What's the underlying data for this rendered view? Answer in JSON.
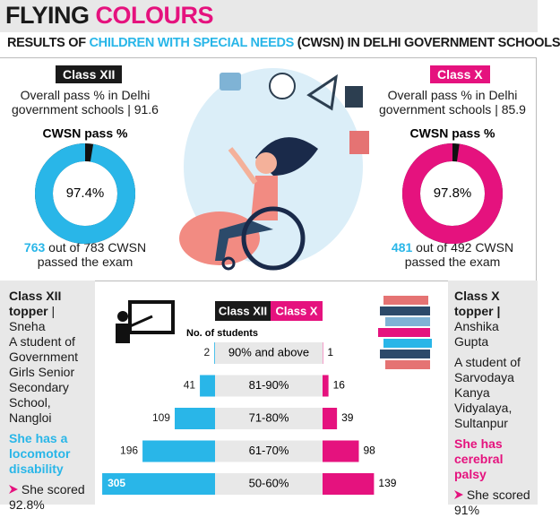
{
  "header": {
    "title_parts": [
      "FLYING",
      "COLOURS"
    ],
    "subtitle_parts": [
      "RESULTS OF",
      "CHILDREN WITH SPECIAL NEEDS",
      "(CWSN) IN DELHI GOVERNMENT SCHOOLS"
    ]
  },
  "panels": [
    {
      "badge": "Class XII",
      "overall": "Overall pass % in Delhi government schools | 91.6",
      "count": "763",
      "count_text": "out of 783 CWSN passed the exam"
    },
    {
      "badge": "Class X",
      "overall": "Overall pass % in Delhi government schools | 85.9",
      "count": "481",
      "count_text": "out of 492 CWSN passed the exam"
    }
  ],
  "chart_data": [
    {
      "type": "pie",
      "title": "CWSN pass %",
      "values": [
        97.4
      ],
      "value_labels": [
        "97.4%"
      ],
      "color": "#29b6e8",
      "rest_color": "#111111"
    },
    {
      "type": "pie",
      "title": "CWSN pass %",
      "values": [
        97.8
      ],
      "value_labels": [
        "97.8%"
      ],
      "color": "#e5127e",
      "rest_color": "#111111"
    },
    {
      "type": "bar",
      "axis_label": "No. of students",
      "categories": [
        "90% and above",
        "81-90%",
        "71-80%",
        "61-70%",
        "50-60%"
      ],
      "series": [
        {
          "name": "Class XII",
          "color": "#29b6e8",
          "values": [
            2,
            41,
            109,
            196,
            305
          ]
        },
        {
          "name": "Class X",
          "color": "#e5127e",
          "values": [
            1,
            16,
            39,
            98,
            139
          ]
        }
      ],
      "xlim": [
        0,
        310
      ]
    }
  ],
  "toppers": [
    {
      "heading": "Class XII topper",
      "name": "| Sneha",
      "school": "A student of Government Girls Senior Secondary School, Nangloi",
      "condition": "She has a locomotor disability",
      "score": "She scored 92.8%"
    },
    {
      "heading": "Class X topper |",
      "name": "Anshika Gupta",
      "school": "A student of Sarvodaya Kanya Vidyalaya, Sultanpur",
      "condition": "She has cerebral palsy",
      "score": "She scored 91%"
    }
  ]
}
